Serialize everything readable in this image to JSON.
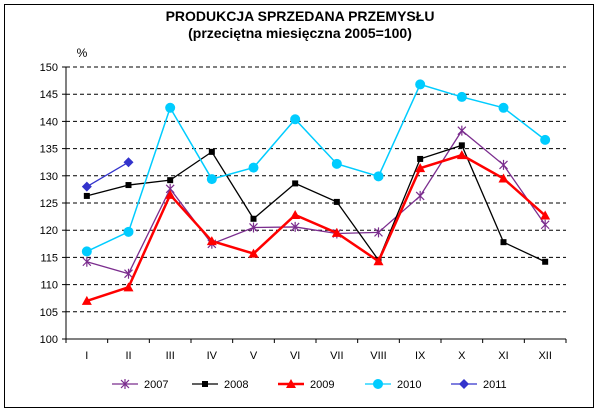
{
  "chart_data": {
    "type": "line",
    "title": "PRODUKCJA SPRZEDANA PRZEMYSŁU",
    "subtitle": "(przeciętna miesięczna 2005=100)",
    "ylabel": "%",
    "xlabel": "",
    "ylim": [
      100,
      150
    ],
    "yticks": [
      100,
      105,
      110,
      115,
      120,
      125,
      130,
      135,
      140,
      145,
      150
    ],
    "categories": [
      "I",
      "II",
      "III",
      "IV",
      "V",
      "VI",
      "VII",
      "VIII",
      "IX",
      "X",
      "XI",
      "XII"
    ],
    "grid": true,
    "legend_position": "bottom",
    "series": [
      {
        "name": "2007",
        "color": "#7b2d8e",
        "marker": "star",
        "values": [
          114.2,
          112,
          127.6,
          117.5,
          120.5,
          120.6,
          119.4,
          119.6,
          126.3,
          138.3,
          132,
          121
        ]
      },
      {
        "name": "2008",
        "color": "#000000",
        "marker": "square",
        "values": [
          126.3,
          128.3,
          129.2,
          134.4,
          122.1,
          128.6,
          125.2,
          114.5,
          133.1,
          135.6,
          117.8,
          114.2
        ]
      },
      {
        "name": "2009",
        "color": "#ff0000",
        "marker": "triangle",
        "values": [
          107,
          109.5,
          126.5,
          118,
          115.7,
          122.8,
          119.5,
          114.3,
          131.4,
          133.8,
          129.5,
          122.7
        ]
      },
      {
        "name": "2010",
        "color": "#00ccff",
        "marker": "circle",
        "values": [
          116.1,
          119.7,
          142.5,
          129.4,
          131.5,
          140.4,
          132.2,
          129.9,
          146.8,
          144.5,
          142.5,
          136.6
        ]
      },
      {
        "name": "2011",
        "color": "#3333cc",
        "marker": "diamond",
        "values": [
          128,
          132.5,
          null,
          null,
          null,
          null,
          null,
          null,
          null,
          null,
          null,
          null
        ]
      }
    ]
  }
}
